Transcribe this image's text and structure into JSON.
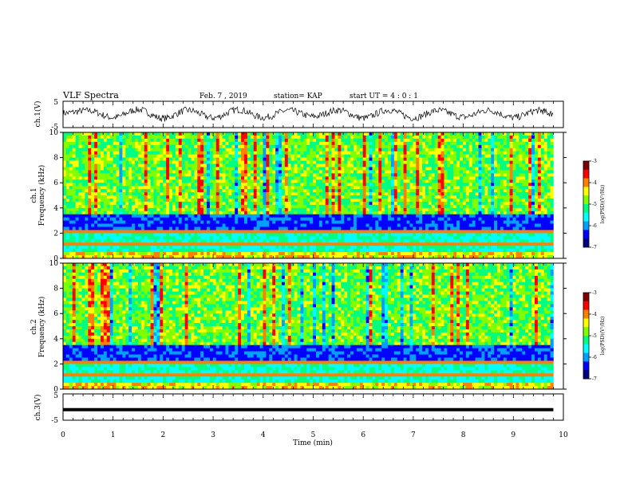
{
  "header": {
    "title": "VLF Spectra",
    "date": "Feb. 7 , 2019",
    "station": "station= KAP",
    "start_ut": "start  UT =  4 : 0  : 1"
  },
  "chart_data": [
    {
      "type": "line",
      "panel": "ch1-waveform",
      "ylabel": "ch.1(V)",
      "ylim": [
        -5,
        5
      ],
      "y_ticks": [
        "5",
        "-5"
      ],
      "xlim": [
        0,
        10
      ],
      "x_unit": "min",
      "description_values": {
        "x": [
          0,
          0.5,
          1,
          1.5,
          2,
          2.5,
          3,
          3.5,
          4,
          4.5,
          5,
          5.5,
          6,
          6.5,
          7,
          7.5,
          8,
          8.5,
          9,
          9.5,
          9.8
        ],
        "y": [
          0.5,
          1.5,
          -1.2,
          1.8,
          -1.5,
          1.6,
          -1.3,
          1.8,
          -1.2,
          1.5,
          -0.8,
          1.6,
          -1.4,
          1.7,
          -1.3,
          1.5,
          -1.0,
          1.6,
          -1.2,
          1.5,
          0.2
        ]
      }
    },
    {
      "type": "heatmap",
      "panel": "ch1-spectrogram",
      "ylabel": "Frequency  (kHz)",
      "channel_label": "ch.1",
      "ylim": [
        0,
        10
      ],
      "y_ticks": [
        "0",
        "2",
        "4",
        "6",
        "8",
        "10"
      ],
      "xlim": [
        0,
        10
      ],
      "colorbar": {
        "label": "log(PSD)(V²/Hz)",
        "range": [
          -7,
          -3
        ],
        "ticks": [
          "-3",
          "-4",
          "-5",
          "-6",
          "-7"
        ]
      }
    },
    {
      "type": "heatmap",
      "panel": "ch2-spectrogram",
      "ylabel": "Frequency  (kHz)",
      "channel_label": "ch.2",
      "ylim": [
        0,
        10
      ],
      "y_ticks": [
        "0",
        "2",
        "4",
        "6",
        "8",
        "10"
      ],
      "xlim": [
        0,
        10
      ],
      "colorbar": {
        "label": "log(PSD)(V²/Hz)",
        "range": [
          -7,
          -3
        ],
        "ticks": [
          "-3",
          "-4",
          "-5",
          "-6",
          "-7"
        ]
      }
    },
    {
      "type": "line",
      "panel": "ch3-waveform",
      "ylabel": "ch.3(V)",
      "ylim": [
        -5,
        5
      ],
      "y_ticks": [
        "5",
        "-5"
      ],
      "xlim": [
        0,
        9.8
      ],
      "x": [
        0,
        9.8
      ],
      "y": [
        -1,
        -1
      ]
    }
  ],
  "x_axis": {
    "label": "Time  (min)",
    "ticks": [
      "0",
      "1",
      "2",
      "3",
      "4",
      "5",
      "6",
      "7",
      "8",
      "9",
      "10"
    ]
  },
  "colors": {
    "colormap": [
      "#000080",
      "#0000ff",
      "#00a0ff",
      "#00ffff",
      "#00ff80",
      "#80ff00",
      "#ffff00",
      "#ff8000",
      "#ff0000",
      "#800000"
    ]
  }
}
